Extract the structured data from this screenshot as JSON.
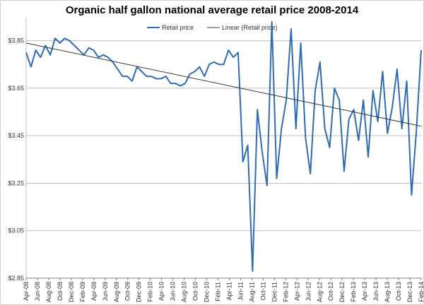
{
  "chart_data": {
    "type": "line",
    "title": "Organic half gallon national average retail price 2008-2014",
    "xlabel": "",
    "ylabel": "",
    "ylim": [
      2.85,
      3.95
    ],
    "y_ticks": [
      "$2.85",
      "$3.05",
      "$3.25",
      "$3.45",
      "$3.65",
      "$3.85"
    ],
    "y_tick_values": [
      2.85,
      3.05,
      3.25,
      3.45,
      3.65,
      3.85
    ],
    "grid": true,
    "legend": "top-center",
    "x_tick_labels": [
      "Apr-08",
      "Jun-08",
      "Aug-08",
      "Oct-08",
      "Dec-08",
      "Feb-09",
      "Apr-09",
      "Jun-09",
      "Aug-09",
      "Oct-09",
      "Dec-09",
      "Feb-10",
      "Apr-10",
      "Jun-10",
      "Aug-10",
      "Oct-10",
      "Dec-10",
      "Feb-11",
      "Apr-11",
      "Jun-11",
      "Aug-11",
      "Oct-11",
      "Dec-11",
      "Feb-12",
      "Apr-12",
      "Jun-12",
      "Aug-12",
      "Oct-12",
      "Dec-12",
      "Feb-13",
      "Apr-13",
      "Jun-13",
      "Aug-13",
      "Oct-13",
      "Dec-13",
      "Feb-14"
    ],
    "series": [
      {
        "name": "Retail price",
        "color": "#2e6db4",
        "values": [
          3.8,
          3.74,
          3.81,
          3.78,
          3.83,
          3.79,
          3.86,
          3.84,
          3.86,
          3.85,
          3.83,
          3.81,
          3.79,
          3.82,
          3.81,
          3.78,
          3.79,
          3.78,
          3.76,
          3.73,
          3.7,
          3.7,
          3.68,
          3.74,
          3.72,
          3.7,
          3.7,
          3.69,
          3.69,
          3.7,
          3.67,
          3.67,
          3.66,
          3.67,
          3.71,
          3.72,
          3.74,
          3.7,
          3.75,
          3.76,
          3.75,
          3.75,
          3.81,
          3.78,
          3.8,
          3.34,
          3.41,
          2.88,
          3.56,
          3.38,
          3.24,
          3.93,
          3.27,
          3.48,
          3.6,
          3.9,
          3.48,
          3.84,
          3.44,
          3.29,
          3.64,
          3.76,
          3.48,
          3.4,
          3.65,
          3.6,
          3.3,
          3.52,
          3.56,
          3.43,
          3.6,
          3.36,
          3.64,
          3.51,
          3.72,
          3.46,
          3.57,
          3.73,
          3.48,
          3.68,
          3.2,
          3.47,
          3.81
        ]
      },
      {
        "name": "Linear (Retail price)",
        "color": "#3a3a3a",
        "values": [
          3.84,
          3.49
        ]
      }
    ]
  }
}
